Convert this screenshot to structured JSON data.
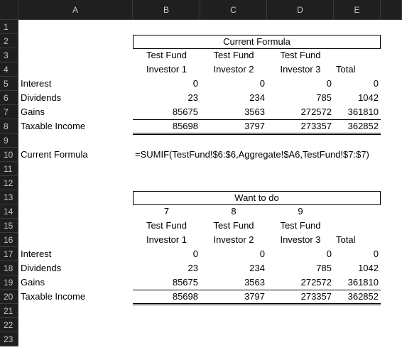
{
  "column_headers": [
    "A",
    "B",
    "C",
    "D",
    "E"
  ],
  "row_headers": [
    1,
    2,
    3,
    4,
    5,
    6,
    7,
    8,
    9,
    10,
    11,
    12,
    13,
    14,
    15,
    16,
    17,
    18,
    19,
    20,
    21,
    22,
    23
  ],
  "rows": [
    null,
    [
      null,
      "Current Formula",
      null,
      null,
      null
    ],
    [
      null,
      "Test Fund",
      "Test Fund",
      "Test Fund",
      null
    ],
    [
      null,
      "Investor 1",
      "Investor 2",
      "Investor 3",
      "Total"
    ],
    [
      "Interest",
      0,
      0,
      0,
      0
    ],
    [
      "Dividends",
      23,
      234,
      785,
      1042
    ],
    [
      "Gains",
      85675,
      3563,
      272572,
      361810
    ],
    [
      "Taxable Income",
      85698,
      3797,
      273357,
      362852
    ],
    null,
    [
      "Current Formula",
      "=SUMIF(TestFund!$6:$6,Aggregate!$A6,TestFund!$7:$7)",
      null,
      null,
      null
    ],
    null,
    null,
    [
      null,
      "Want to do",
      null,
      null,
      null
    ],
    [
      null,
      7,
      8,
      9,
      null
    ],
    [
      null,
      "Test Fund",
      "Test Fund",
      "Test Fund",
      null
    ],
    [
      null,
      "Investor 1",
      "Investor 2",
      "Investor 3",
      "Total"
    ],
    [
      "Interest",
      0,
      0,
      0,
      0
    ],
    [
      "Dividends",
      23,
      234,
      785,
      1042
    ],
    [
      "Gains",
      85675,
      3563,
      272572,
      361810
    ],
    [
      "Taxable Income",
      85698,
      3797,
      273357,
      362852
    ],
    null,
    null,
    null
  ]
}
